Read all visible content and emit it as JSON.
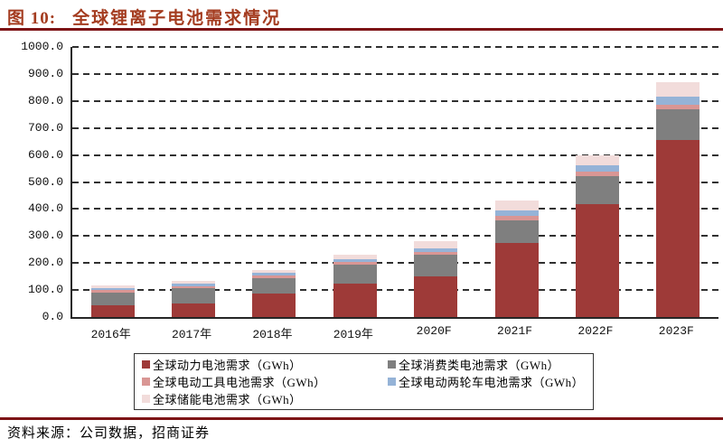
{
  "figure": {
    "label": "图 10:",
    "title": "全球锂离子电池需求情况"
  },
  "footer": {
    "source": "资料来源：公司数据，招商证券"
  },
  "colors": {
    "title_text": "#A43C20",
    "rule_dark_red": "#7D1416",
    "axis": "#262626",
    "grid": "#303030",
    "legend_border": "#333333"
  },
  "chart_data": {
    "type": "bar",
    "stacked": true,
    "title": "全球锂离子电池需求情况",
    "xlabel": "",
    "ylabel": "",
    "categories": [
      "2016年",
      "2017年",
      "2018年",
      "2019年",
      "2020F",
      "2021F",
      "2022F",
      "2023F"
    ],
    "series": [
      {
        "name": "全球动力电池需求（GWh）",
        "color": "#9E3A38",
        "values": [
          45,
          50,
          87,
          125,
          150,
          273,
          418,
          655
        ]
      },
      {
        "name": "全球消费类电池需求（GWh）",
        "color": "#7F7F7F",
        "values": [
          46,
          56,
          58,
          70,
          80,
          84,
          105,
          113
        ]
      },
      {
        "name": "全球电动工具电池需求（GWh）",
        "color": "#D99694",
        "values": [
          8,
          9,
          9,
          9,
          10,
          17,
          17,
          19
        ]
      },
      {
        "name": "全球电动两轮车电池需求（GWh）",
        "color": "#95B3D7",
        "values": [
          8,
          10,
          10,
          9,
          13,
          22,
          23,
          29
        ]
      },
      {
        "name": "全球储能电池需求（GWh）",
        "color": "#F2DCDB",
        "values": [
          9,
          10,
          10,
          17,
          27,
          36,
          35,
          52
        ]
      }
    ],
    "totals": [
      116,
      135,
      174,
      230,
      280,
      432,
      598,
      868
    ],
    "ylim": [
      0,
      1000
    ],
    "ytick_step": 100,
    "ytick_labels": [
      "0.0",
      "100.0",
      "200.0",
      "300.0",
      "400.0",
      "500.0",
      "600.0",
      "700.0",
      "800.0",
      "900.0",
      "1000.0"
    ],
    "grid": "horizontal-dashed",
    "legend_position": "bottom-boxed-2col"
  }
}
